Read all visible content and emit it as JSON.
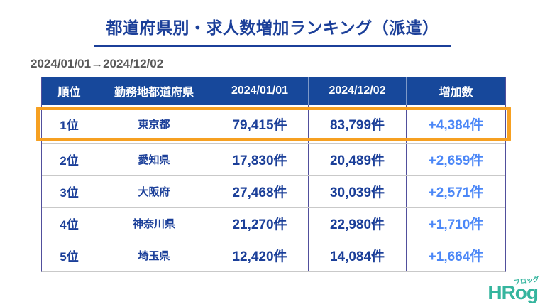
{
  "header": {
    "title": "都道府県別・求人数増加ランキング（派遣）",
    "date_range": "2024/01/01→2024/12/02"
  },
  "table": {
    "columns": [
      "順位",
      "勤務地都道府県",
      "2024/01/01",
      "2024/12/02",
      "増加数"
    ],
    "rows": [
      {
        "rank": "1位",
        "prefecture": "東京都",
        "start": "79,415件",
        "end": "83,799件",
        "increase": "+4,384件"
      },
      {
        "rank": "2位",
        "prefecture": "愛知県",
        "start": "17,830件",
        "end": "20,489件",
        "increase": "+2,659件"
      },
      {
        "rank": "3位",
        "prefecture": "大阪府",
        "start": "27,468件",
        "end": "30,039件",
        "increase": "+2,571件"
      },
      {
        "rank": "4位",
        "prefecture": "神奈川県",
        "start": "21,270件",
        "end": "22,980件",
        "increase": "+1,710件"
      },
      {
        "rank": "5位",
        "prefecture": "埼玉県",
        "start": "12,420件",
        "end": "14,084件",
        "increase": "+1,664件"
      }
    ]
  },
  "chart_data": {
    "type": "table",
    "title": "都道府県別・求人数増加ランキング（派遣）",
    "subtitle": "2024/01/01→2024/12/02",
    "columns": [
      "順位",
      "勤務地都道府県",
      "2024/01/01",
      "2024/12/02",
      "増加数"
    ],
    "rows": [
      [
        "1位",
        "東京都",
        79415,
        83799,
        4384
      ],
      [
        "2位",
        "愛知県",
        17830,
        20489,
        2659
      ],
      [
        "3位",
        "大阪府",
        27468,
        30039,
        2571
      ],
      [
        "4位",
        "神奈川県",
        21270,
        22980,
        1710
      ],
      [
        "5位",
        "埼玉県",
        12420,
        14084,
        1664
      ]
    ],
    "unit": "件",
    "highlighted_row_index": 0
  },
  "footer": {
    "logo_text": "HRog",
    "logo_kana": "フロッグ"
  },
  "colors": {
    "header_bg": "#17489B",
    "dark_blue": "#1B3F99",
    "accent_blue": "#4B87F7",
    "highlight_orange": "#F6A021",
    "logo_teal": "#35B59E",
    "date_gray": "#595959",
    "divider_purple": "#514F9C",
    "row_border_gray": "#C9C9C9"
  }
}
